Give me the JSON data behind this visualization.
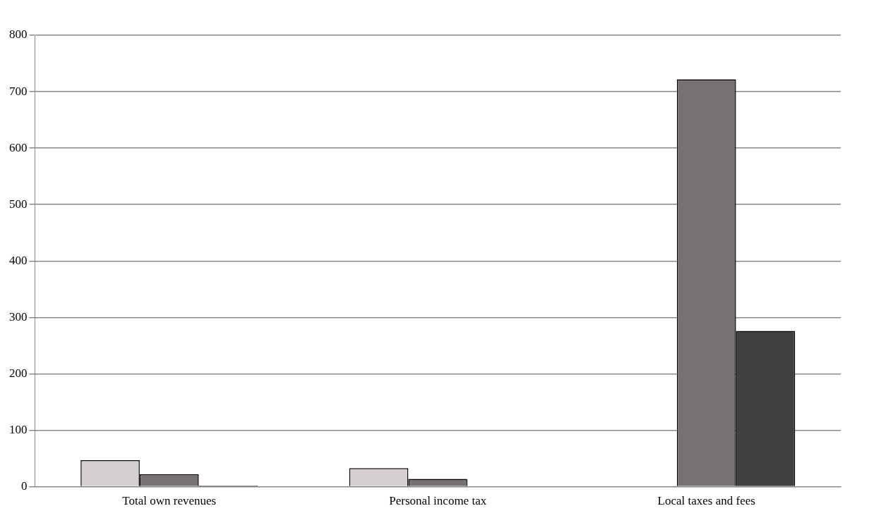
{
  "chart_data": {
    "type": "bar",
    "categories": [
      "Total own revenues",
      "Personal income tax",
      "Local taxes and fees"
    ],
    "series": [
      {
        "color": "#d4d0d0",
        "values": [
          47,
          33,
          0
        ]
      },
      {
        "color": "#777171",
        "values": [
          22,
          14,
          722
        ]
      },
      {
        "color": "#404040",
        "values": [
          2,
          1,
          276
        ]
      }
    ],
    "ylim": [
      0,
      800
    ],
    "yticks": [
      0,
      100,
      200,
      300,
      400,
      500,
      600,
      700,
      800
    ],
    "grid": "y"
  }
}
